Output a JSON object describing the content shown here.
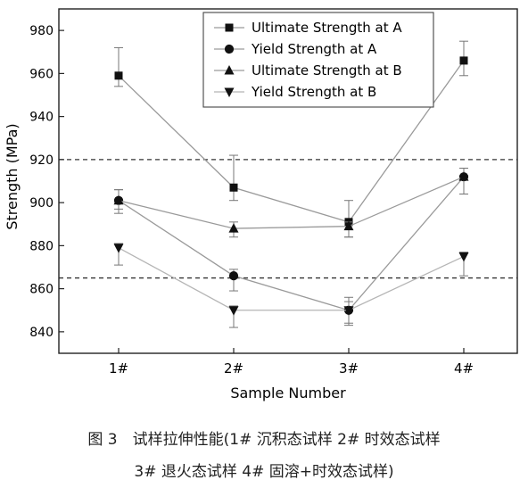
{
  "chart_data": {
    "type": "line",
    "title": "",
    "xlabel": "Sample Number",
    "ylabel": "Strength (MPa)",
    "categories": [
      "1#",
      "2#",
      "3#",
      "4#"
    ],
    "ylim": [
      830,
      990
    ],
    "yticks": [
      840,
      860,
      880,
      900,
      920,
      940,
      960,
      980
    ],
    "grid": false,
    "legend_position": "top-right",
    "reference_lines": [
      920,
      865
    ],
    "series": [
      {
        "name": "Ultimate Strength at A",
        "marker": "square",
        "color": "#111111",
        "line_color": "#9a9a9a",
        "values": [
          959,
          907,
          891,
          966
        ],
        "err_plus": [
          13,
          15,
          10,
          9
        ],
        "err_minus": [
          5,
          6,
          7,
          7
        ]
      },
      {
        "name": "Yield Strength at A",
        "marker": "circle",
        "color": "#111111",
        "line_color": "#9a9a9a",
        "values": [
          901,
          866,
          850,
          912
        ],
        "err_plus": [
          5,
          3,
          6,
          4
        ],
        "err_minus": [
          6,
          7,
          6,
          8
        ]
      },
      {
        "name": "Ultimate Strength at B",
        "marker": "triangle-up",
        "color": "#111111",
        "line_color": "#9a9a9a",
        "values": [
          901,
          888,
          889,
          912
        ],
        "err_plus": [
          5,
          3,
          2,
          4
        ],
        "err_minus": [
          4,
          4,
          5,
          8
        ]
      },
      {
        "name": "Yield Strength at B",
        "marker": "triangle-down",
        "color": "#111111",
        "line_color": "#b5b5b5",
        "values": [
          879,
          850,
          850,
          875
        ],
        "err_plus": [
          2,
          2,
          4,
          2
        ],
        "err_minus": [
          8,
          8,
          7,
          9
        ]
      }
    ]
  },
  "caption": {
    "line1": "图 3　试样拉伸性能(1# 沉积态试样 2# 时效态试样",
    "line2": "3# 退火态试样 4# 固溶+时效态试样)"
  }
}
